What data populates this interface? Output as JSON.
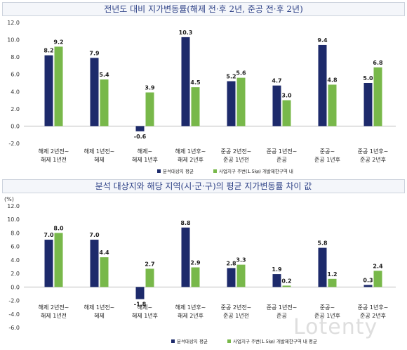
{
  "chart_data": [
    {
      "type": "bar",
      "title": "전년도 대비 지가변동률(해제 전·후 2년, 준공 전·후 2년)",
      "unit": "",
      "categories": [
        [
          "해제 2년전~",
          "해제 1년전"
        ],
        [
          "해제 1년전~",
          "해제"
        ],
        [
          "해제~",
          "해제 1년후"
        ],
        [
          "해제 1년후~",
          "해제 2년후"
        ],
        [
          "준공 2년전~",
          "준공 1년전"
        ],
        [
          "준공 1년전~",
          "준공"
        ],
        [
          "준공~",
          "준공 1년후"
        ],
        [
          "준공 1년후~",
          "준공 2년후"
        ]
      ],
      "series": [
        {
          "name": "분석대상지 평균",
          "color": "#1d2a6b",
          "values": [
            8.2,
            7.9,
            -0.6,
            10.3,
            5.2,
            4.7,
            9.4,
            5.0
          ]
        },
        {
          "name": "사업지구 주변(1.5㎞) 개발제한구역 내",
          "color": "#78b84a",
          "values": [
            9.2,
            5.4,
            3.9,
            4.5,
            5.6,
            3.0,
            4.8,
            6.8
          ]
        }
      ],
      "ylim": [
        -2.0,
        12.0
      ],
      "yticks": [
        "12.0",
        "10.0",
        "8.0",
        "6.0",
        "4.0",
        "2.0",
        "0.0",
        "-2.0"
      ],
      "legend": "bottom-right",
      "grid": false
    },
    {
      "type": "bar",
      "title": "분석 대상지와 해당 지역(시·군·구)의 평균 지가변동률 차이 값",
      "unit": "(%)",
      "categories": [
        [
          "해제 2년전~",
          "해제 1년전"
        ],
        [
          "해제 1년전~",
          "해제"
        ],
        [
          "해제~",
          "해제 1년후"
        ],
        [
          "해제 1년후~",
          "해제 2년후"
        ],
        [
          "준공 2년전~",
          "준공 1년전"
        ],
        [
          "준공 1년전~",
          "준공"
        ],
        [
          "준공~",
          "준공 1년후"
        ],
        [
          "준공 1년후~",
          "준공 2년후"
        ]
      ],
      "series": [
        {
          "name": "분석대상지 평균",
          "color": "#1d2a6b",
          "values": [
            7.0,
            7.0,
            -1.8,
            8.8,
            2.8,
            1.9,
            5.8,
            0.3
          ]
        },
        {
          "name": "사업지구 주변(1.5㎞) 개발제한구역 내 평균",
          "color": "#78b84a",
          "values": [
            8.0,
            4.4,
            2.7,
            2.9,
            3.3,
            0.2,
            1.2,
            2.4
          ]
        }
      ],
      "ylim": [
        -6.0,
        12.0
      ],
      "yticks": [
        "12.0",
        "10.0",
        "8.0",
        "6.0",
        "4.0",
        "2.0",
        "0.0",
        "-2.0",
        "-4.0",
        "-6.0"
      ],
      "legend": "bottom-right",
      "grid": false
    }
  ],
  "watermark": "Lotenty"
}
